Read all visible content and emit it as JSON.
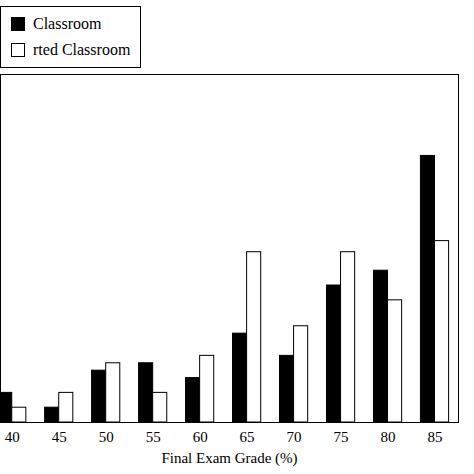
{
  "chart_data": {
    "type": "bar",
    "xlabel": "Final Exam Grade (%)",
    "categories": [
      "40",
      "45",
      "50",
      "55",
      "60",
      "65",
      "70",
      "75",
      "80",
      "85"
    ],
    "series": [
      {
        "name": "Classroom",
        "color": "#000000",
        "values": [
          4,
          2,
          7,
          8,
          6,
          12,
          9,
          18.5,
          20.5,
          36
        ]
      },
      {
        "name": "rted Classroom",
        "color": "#ffffff",
        "values": [
          2,
          4,
          8,
          4,
          9,
          23,
          13,
          23,
          16.5,
          24.5
        ]
      }
    ],
    "ylim": [
      0,
      47
    ],
    "tick_labels": "x",
    "legend": "top-left"
  }
}
